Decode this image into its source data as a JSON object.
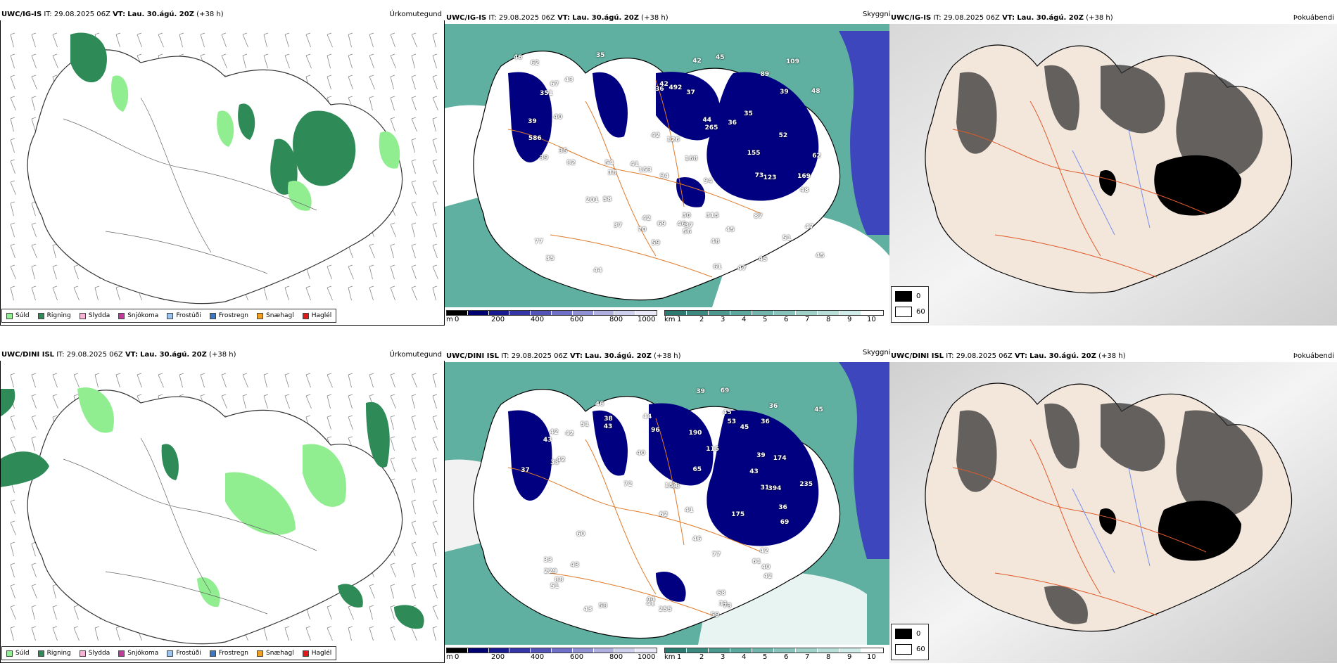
{
  "colors": {
    "drizzle": "#90ee90",
    "rain": "#2e8b57",
    "sleet": "#f5b3d6",
    "snow": "#c0399b",
    "freezing_drizzle": "#99c4f0",
    "freezing_rain": "#3a78c4",
    "snow_grains": "#f0a020",
    "hail": "#e01818",
    "cloud_dark": "#000080",
    "vis_teal": "#3a9a8a",
    "land": "#f3e7dc",
    "roads": "#e07a2a"
  },
  "rows": [
    {
      "model": "UWC/IG-IS",
      "init_label": "IT:",
      "init_value": "29.08.2025 06Z",
      "valid_label": "VT:",
      "valid_value": "Lau. 30.ágú. 20Z",
      "lead": "(+38 h)"
    },
    {
      "model": "UWC/DINI ISL",
      "init_label": "IT:",
      "init_value": "29.08.2025 06Z",
      "valid_label": "VT:",
      "valid_value": "Lau. 30.ágú. 20Z",
      "lead": "(+38 h)"
    }
  ],
  "panel_titles": {
    "precip": "Úrkomutegund",
    "visibility": "Skyggni",
    "fog": "Þokuábendi"
  },
  "precip_legend": [
    "Súld",
    "Rigning",
    "Slydda",
    "Snjókoma",
    "Frostúði",
    "Frostregn",
    "Snæhagl",
    "Haglél"
  ],
  "cloud_scale": {
    "unit": "m",
    "ticks": [
      "0",
      "200",
      "400",
      "600",
      "800",
      "1000"
    ]
  },
  "vis_scale": {
    "unit": "km",
    "ticks": [
      "1",
      "2",
      "3",
      "4",
      "5",
      "6",
      "7",
      "8",
      "9",
      "10"
    ]
  },
  "fog_legend": [
    "0",
    "60"
  ],
  "cloud_base_labels_top": [
    "51",
    "47",
    "30",
    "42",
    "45",
    "36",
    "47",
    "45",
    "43",
    "48",
    "35",
    "54",
    "45",
    "46",
    "42",
    "35",
    "36",
    "39",
    "37",
    "35",
    "48",
    "61",
    "58",
    "62",
    "70",
    "52",
    "42",
    "48",
    "38",
    "56",
    "37",
    "62",
    "44",
    "94",
    "82",
    "46",
    "42",
    "44",
    "39",
    "41",
    "37",
    "39",
    "35",
    "153",
    "59",
    "109",
    "40",
    "69",
    "67",
    "77",
    "94",
    "45",
    "168",
    "123",
    "201",
    "169",
    "89",
    "87",
    "126",
    "73",
    "155",
    "265",
    "351",
    "492",
    "315",
    "586"
  ],
  "cloud_base_labels_bottom": [
    "46",
    "39",
    "31",
    "43",
    "36",
    "51",
    "42",
    "62",
    "45",
    "45",
    "88",
    "69",
    "60",
    "33",
    "44",
    "41",
    "43",
    "38",
    "42",
    "40",
    "39",
    "43",
    "72",
    "68",
    "51",
    "45",
    "36",
    "44",
    "46",
    "41",
    "42",
    "45",
    "40",
    "42",
    "33",
    "58",
    "59",
    "73",
    "43",
    "37",
    "65",
    "69",
    "43",
    "42",
    "77",
    "61",
    "53",
    "36",
    "31",
    "190",
    "174",
    "175",
    "229",
    "235",
    "394",
    "115",
    "96",
    "154",
    "255"
  ]
}
